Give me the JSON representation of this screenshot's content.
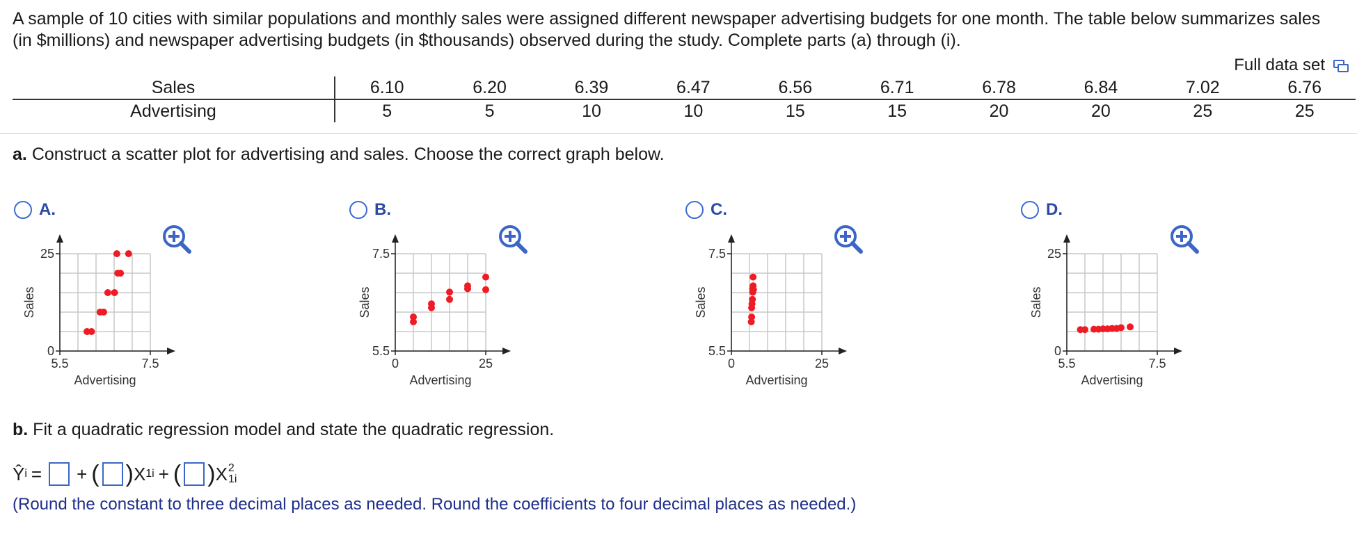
{
  "intro": "A sample of 10 cities with similar populations and monthly sales were assigned different newspaper advertising budgets for one month. The table below summarizes sales (in $millions) and newspaper advertising budgets (in $thousands) observed during the study. Complete parts (a) through (i).",
  "full_data_label": "Full data set",
  "table": {
    "row1_label": "Sales",
    "row2_label": "Advertising",
    "sales": [
      "6.10",
      "6.20",
      "6.39",
      "6.47",
      "6.56",
      "6.71",
      "6.78",
      "6.84",
      "7.02",
      "6.76"
    ],
    "advertising": [
      "5",
      "5",
      "10",
      "10",
      "15",
      "15",
      "20",
      "20",
      "25",
      "25"
    ]
  },
  "part_a": {
    "letter": "a.",
    "text": "Construct a scatter plot for advertising and sales. Choose the correct graph below."
  },
  "options": [
    {
      "letter": "A.",
      "xlabel": "Advertising",
      "ylabel": "Sales",
      "xticks": [
        "5.5",
        "7.5"
      ],
      "yticks": [
        "0",
        "25"
      ]
    },
    {
      "letter": "B.",
      "xlabel": "Advertising",
      "ylabel": "Sales",
      "xticks": [
        "0",
        "25"
      ],
      "yticks": [
        "5.5",
        "7.5"
      ]
    },
    {
      "letter": "C.",
      "xlabel": "Advertising",
      "ylabel": "Sales",
      "xticks": [
        "0",
        "25"
      ],
      "yticks": [
        "5.5",
        "7.5"
      ]
    },
    {
      "letter": "D.",
      "xlabel": "Advertising",
      "ylabel": "Sales",
      "xticks": [
        "5.5",
        "7.5"
      ],
      "yticks": [
        "0",
        "25"
      ]
    }
  ],
  "chart_data": [
    {
      "type": "scatter",
      "title": "A.",
      "xlabel": "Advertising",
      "ylabel": "Sales",
      "xlim": [
        5.5,
        7.5
      ],
      "ylim": [
        0,
        25
      ],
      "x": [
        6.1,
        6.2,
        6.39,
        6.47,
        6.56,
        6.71,
        6.78,
        6.84,
        7.02,
        6.76
      ],
      "y": [
        5,
        5,
        10,
        10,
        15,
        15,
        20,
        20,
        25,
        25
      ]
    },
    {
      "type": "scatter",
      "title": "B.",
      "xlabel": "Advertising",
      "ylabel": "Sales",
      "xlim": [
        0,
        25
      ],
      "ylim": [
        5.5,
        7.5
      ],
      "x": [
        5,
        5,
        10,
        10,
        15,
        15,
        20,
        20,
        25,
        25
      ],
      "y": [
        6.1,
        6.2,
        6.39,
        6.47,
        6.56,
        6.71,
        6.78,
        6.84,
        7.02,
        6.76
      ]
    },
    {
      "type": "scatter",
      "title": "C.",
      "xlabel": "Advertising",
      "ylabel": "Sales",
      "xlim": [
        0,
        25
      ],
      "ylim": [
        5.5,
        7.5
      ],
      "x": [
        5.5,
        5.6,
        5.6,
        5.7,
        5.8,
        5.9,
        5.9,
        6.0,
        6.0,
        6.1
      ],
      "y": [
        6.1,
        6.2,
        6.39,
        6.47,
        6.56,
        6.71,
        6.78,
        6.84,
        7.02,
        6.76
      ]
    },
    {
      "type": "scatter",
      "title": "D.",
      "xlabel": "Advertising",
      "ylabel": "Sales",
      "xlim": [
        5.5,
        7.5
      ],
      "ylim": [
        0,
        25
      ],
      "x": [
        5.8,
        5.9,
        6.1,
        6.2,
        6.3,
        6.4,
        6.5,
        6.6,
        6.7,
        6.9
      ],
      "y": [
        5.5,
        5.5,
        5.6,
        5.6,
        5.7,
        5.7,
        5.8,
        5.8,
        6.0,
        6.2
      ]
    }
  ],
  "part_b": {
    "letter": "b.",
    "text": "Fit a quadratic regression model and state the quadratic regression."
  },
  "equation": {
    "yhat": "Ŷ",
    "sub_i": "i",
    "eq": "=",
    "plus": "+",
    "x": "X",
    "sub_1i": "1i",
    "sup_2": "2",
    "lparen": "(",
    "rparen": ")"
  },
  "note": "(Round the constant to three decimal places as needed. Round the coefficients to four decimal places as needed.)"
}
